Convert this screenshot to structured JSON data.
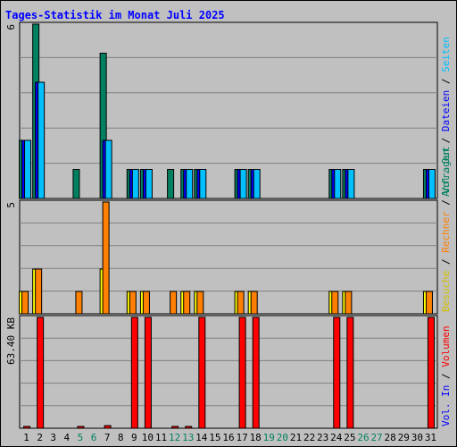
{
  "title": "Tages-Statistik im Monat Juli 2025",
  "chart_data": [
    {
      "type": "bar",
      "panel": "top",
      "ymax_label": "6",
      "ylim": [
        0,
        6
      ],
      "categories": [
        "1",
        "2",
        "3",
        "4",
        "5",
        "6",
        "7",
        "8",
        "9",
        "10",
        "11",
        "12",
        "13",
        "14",
        "15",
        "16",
        "17",
        "18",
        "19",
        "20",
        "21",
        "22",
        "23",
        "24",
        "25",
        "26",
        "27",
        "28",
        "29",
        "30",
        "31"
      ],
      "series": [
        {
          "key": "anfragen",
          "color": "#008060",
          "values": [
            2,
            6,
            0,
            0,
            1,
            0,
            5,
            0,
            1,
            1,
            0,
            1,
            1,
            1,
            0,
            0,
            1,
            1,
            0,
            0,
            0,
            0,
            0,
            1,
            1,
            0,
            0,
            0,
            0,
            0,
            1
          ]
        },
        {
          "key": "dateien",
          "color": "#0000ff",
          "values": [
            2,
            4,
            0,
            0,
            0,
            0,
            2,
            0,
            1,
            1,
            0,
            0,
            1,
            1,
            0,
            0,
            1,
            1,
            0,
            0,
            0,
            0,
            0,
            1,
            1,
            0,
            0,
            0,
            0,
            0,
            1
          ]
        },
        {
          "key": "seiten",
          "color": "#00c0ff",
          "values": [
            2,
            4,
            0,
            0,
            0,
            0,
            2,
            0,
            1,
            1,
            0,
            0,
            1,
            1,
            0,
            0,
            1,
            1,
            0,
            0,
            0,
            0,
            0,
            1,
            1,
            0,
            0,
            0,
            0,
            0,
            1
          ]
        }
      ],
      "legend": [
        {
          "text": "Anfragen",
          "color": "#008060"
        },
        {
          "text": " / ",
          "color": "#000000"
        },
        {
          "text": "Dateien",
          "color": "#0000ff"
        },
        {
          "text": " / ",
          "color": "#000000"
        },
        {
          "text": "Seiten",
          "color": "#00c0ff"
        }
      ]
    },
    {
      "type": "bar",
      "panel": "middle",
      "ymax_label": "5",
      "ylim": [
        0,
        5
      ],
      "series": [
        {
          "key": "besuche",
          "color": "#ffff00",
          "values": [
            1,
            2,
            0,
            0,
            0,
            0,
            2,
            0,
            1,
            1,
            0,
            0,
            1,
            1,
            0,
            0,
            1,
            1,
            0,
            0,
            0,
            0,
            0,
            1,
            1,
            0,
            0,
            0,
            0,
            0,
            1
          ]
        },
        {
          "key": "rechner",
          "color": "#ff8000",
          "values": [
            1,
            2,
            0,
            0,
            1,
            0,
            5,
            0,
            1,
            1,
            0,
            1,
            1,
            1,
            0,
            0,
            1,
            1,
            0,
            0,
            0,
            0,
            0,
            1,
            1,
            0,
            0,
            0,
            0,
            0,
            1
          ]
        }
      ],
      "legend": [
        {
          "text": "Besuche",
          "color": "#d0c000"
        },
        {
          "text": " / ",
          "color": "#000000"
        },
        {
          "text": "Rechner",
          "color": "#ff8000"
        },
        {
          "text": " / ",
          "color": "#000000"
        },
        {
          "text": "Vol. Out",
          "color": "#008060"
        }
      ]
    },
    {
      "type": "bar",
      "panel": "bottom",
      "ymax_label": "63.40 KB",
      "ylim": [
        0,
        63.4
      ],
      "series": [
        {
          "key": "volumen",
          "color": "#ff0000",
          "values": [
            1,
            63.4,
            0,
            0,
            1,
            0,
            1.5,
            0,
            63.4,
            63.4,
            0,
            1,
            1,
            63.4,
            0,
            0,
            63.4,
            63.4,
            0,
            0,
            0,
            0,
            0,
            63.4,
            63.4,
            0,
            0,
            0,
            0,
            0,
            63.4
          ]
        }
      ],
      "legend": [
        {
          "text": "Vol. In",
          "color": "#0000ff"
        },
        {
          "text": " / ",
          "color": "#000000"
        },
        {
          "text": "Volumen",
          "color": "#ff0000"
        }
      ]
    }
  ],
  "xaxis": {
    "weekend_days": [
      "5",
      "6",
      "12",
      "13",
      "19",
      "20",
      "26",
      "27"
    ],
    "weekend_color": "#008060",
    "weekday_color": "#000000"
  }
}
